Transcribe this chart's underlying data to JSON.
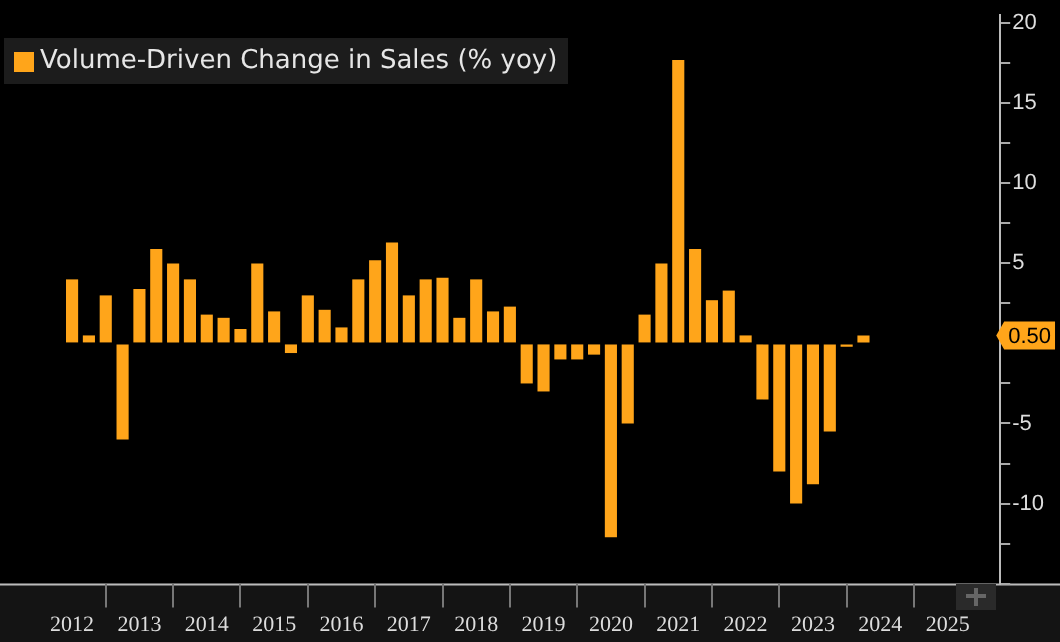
{
  "chart_data": {
    "type": "bar",
    "legend": "top left",
    "grid": false,
    "x": [
      2012.5,
      2012.75,
      2013,
      2013.25,
      2013.5,
      2013.75,
      2014,
      2014.25,
      2014.5,
      2014.75,
      2015,
      2015.25,
      2015.5,
      2015.75,
      2016,
      2016.25,
      2016.5,
      2016.75,
      2017,
      2017.25,
      2017.5,
      2017.75,
      2018,
      2018.25,
      2018.5,
      2018.75,
      2019,
      2019.25,
      2019.5,
      2019.75,
      2020,
      2020.25,
      2020.5,
      2020.75,
      2021,
      2021.25,
      2021.5,
      2021.75,
      2022,
      2022.25,
      2022.5,
      2022.75,
      2023,
      2023.25,
      2023.5,
      2023.75,
      2024,
      2024.25
    ],
    "series": [
      {
        "name": "Volume-Driven Change in Sales (% yoy)",
        "color": "#ffa51a",
        "values": [
          4.0,
          0.5,
          3.0,
          -6.0,
          3.4,
          5.9,
          5.0,
          4.0,
          1.8,
          1.6,
          0.9,
          5.0,
          2.0,
          -0.6,
          3.0,
          2.1,
          1.0,
          4.0,
          5.2,
          6.3,
          3.0,
          4.0,
          4.1,
          1.6,
          4.0,
          2.0,
          2.3,
          -2.5,
          -3.0,
          -1.0,
          -1.0,
          -0.7,
          -12.1,
          -5.0,
          1.8,
          5.0,
          17.7,
          5.9,
          2.7,
          3.3,
          0.5,
          -3.5,
          -8.0,
          -10.0,
          -8.8,
          -5.5,
          -0.2,
          0.5
        ]
      }
    ],
    "xlim": [
      2011.43,
      2026.28
    ],
    "xticks": [
      {
        "value": 2012.5,
        "label": "2012"
      },
      {
        "value": 2013,
        "label": null
      },
      {
        "value": 2013.5,
        "label": "2013"
      },
      {
        "value": 2014,
        "label": null
      },
      {
        "value": 2014.5,
        "label": "2014"
      },
      {
        "value": 2015,
        "label": null
      },
      {
        "value": 2015.5,
        "label": "2015"
      },
      {
        "value": 2016,
        "label": null
      },
      {
        "value": 2016.5,
        "label": "2016"
      },
      {
        "value": 2017,
        "label": null
      },
      {
        "value": 2017.5,
        "label": "2017"
      },
      {
        "value": 2018,
        "label": null
      },
      {
        "value": 2018.5,
        "label": "2018"
      },
      {
        "value": 2019,
        "label": null
      },
      {
        "value": 2019.5,
        "label": "2019"
      },
      {
        "value": 2020,
        "label": null
      },
      {
        "value": 2020.5,
        "label": "2020"
      },
      {
        "value": 2021,
        "label": null
      },
      {
        "value": 2021.5,
        "label": "2021"
      },
      {
        "value": 2022,
        "label": null
      },
      {
        "value": 2022.5,
        "label": "2022"
      },
      {
        "value": 2023,
        "label": null
      },
      {
        "value": 2023.5,
        "label": "2023"
      },
      {
        "value": 2024,
        "label": null
      },
      {
        "value": 2024.5,
        "label": "2024"
      },
      {
        "value": 2025,
        "label": null
      },
      {
        "value": 2025.5,
        "label": "2025"
      },
      {
        "value": 2026,
        "label": null
      }
    ],
    "ylim": [
      -15,
      20.5
    ],
    "yticks": [
      {
        "value": -15,
        "label": null
      },
      {
        "value": -12.5,
        "label": null
      },
      -10,
      {
        "value": -7.5,
        "label": null
      },
      -5,
      {
        "value": -2.5,
        "label": null
      },
      {
        "value": 0,
        "label": null
      },
      {
        "value": 2.5,
        "label": null
      },
      5,
      {
        "value": 7.5,
        "label": null
      },
      10,
      {
        "value": 12.5,
        "label": null
      },
      15,
      {
        "value": 17.5,
        "label": null
      },
      20
    ],
    "annotations": [
      "0.50"
    ]
  }
}
